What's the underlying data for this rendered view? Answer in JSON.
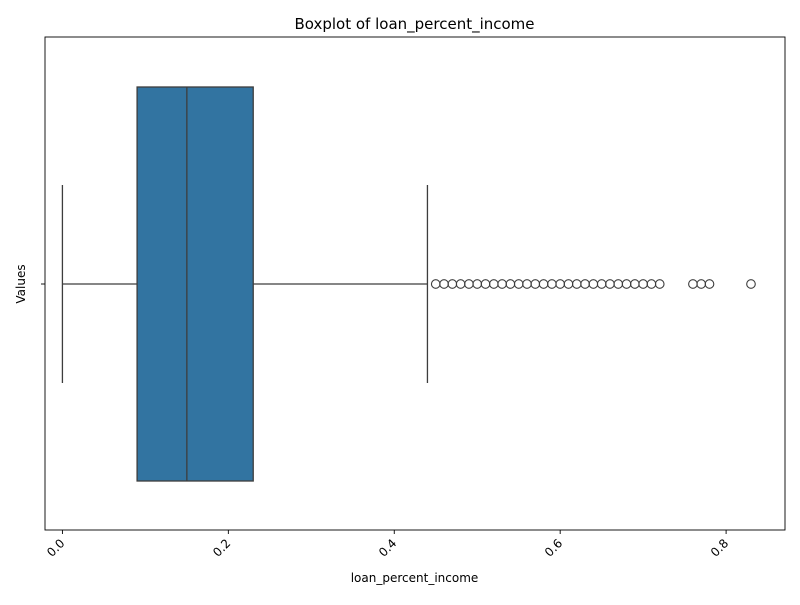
{
  "chart_data": {
    "type": "boxplot",
    "title": "Boxplot of loan_percent_income",
    "xlabel": "loan_percent_income",
    "ylabel": "Values",
    "xlim": [
      -0.021,
      0.871
    ],
    "xticks": [
      {
        "value": 0.0,
        "label": "0.0"
      },
      {
        "value": 0.2,
        "label": "0.2"
      },
      {
        "value": 0.4,
        "label": "0.4"
      },
      {
        "value": 0.6,
        "label": "0.6"
      },
      {
        "value": 0.8,
        "label": "0.8"
      }
    ],
    "xtick_rotation": 45,
    "yticks": [
      {
        "value": 0,
        "label": ""
      }
    ],
    "grid": false,
    "box": {
      "whisker_low": 0.0,
      "q1": 0.09,
      "median": 0.15,
      "q3": 0.23,
      "whisker_high": 0.44,
      "color": "#3274a1",
      "edge_color": "#3d3d3d"
    },
    "outliers": [
      0.45,
      0.46,
      0.47,
      0.48,
      0.49,
      0.5,
      0.51,
      0.52,
      0.53,
      0.54,
      0.55,
      0.56,
      0.57,
      0.58,
      0.59,
      0.6,
      0.61,
      0.62,
      0.63,
      0.64,
      0.65,
      0.66,
      0.67,
      0.68,
      0.69,
      0.7,
      0.71,
      0.72,
      0.76,
      0.77,
      0.78,
      0.83
    ]
  }
}
